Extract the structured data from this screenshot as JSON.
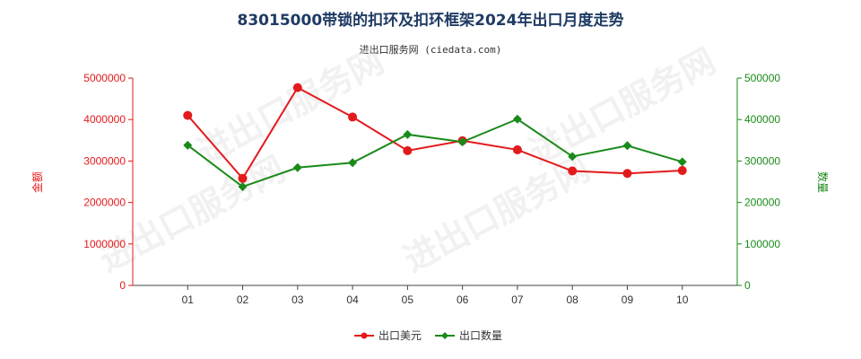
{
  "chart_data": {
    "type": "line",
    "title": "83015000带锁的扣环及扣环框架2024年出口月度走势",
    "subtitle": "进出口服务网 (ciedata.com)",
    "categories": [
      "01",
      "02",
      "03",
      "04",
      "05",
      "06",
      "07",
      "08",
      "09",
      "10"
    ],
    "y_left": {
      "label": "金额",
      "range": [
        0,
        5000000
      ],
      "ticks": [
        "0",
        "1000000",
        "2000000",
        "3000000",
        "4000000",
        "5000000"
      ],
      "color": "#e31a1c"
    },
    "y_right": {
      "label": "数量",
      "range": [
        0,
        500000
      ],
      "ticks": [
        "0",
        "100000",
        "200000",
        "300000",
        "400000",
        "500000"
      ],
      "color": "#1a8a1a"
    },
    "series": [
      {
        "name": "出口美元",
        "axis": "left",
        "color": "#e31a1c",
        "marker": "circle",
        "values": [
          4100000,
          2580000,
          4770000,
          4060000,
          3250000,
          3490000,
          3270000,
          2760000,
          2700000,
          2770000
        ]
      },
      {
        "name": "出口数量",
        "axis": "right",
        "color": "#1a8a1a",
        "marker": "diamond",
        "values": [
          338000,
          238000,
          284000,
          296000,
          364000,
          346000,
          401000,
          311000,
          337000,
          298000
        ]
      }
    ],
    "grid": false,
    "legend": "bottom-center",
    "watermark": "进出口服务网"
  }
}
